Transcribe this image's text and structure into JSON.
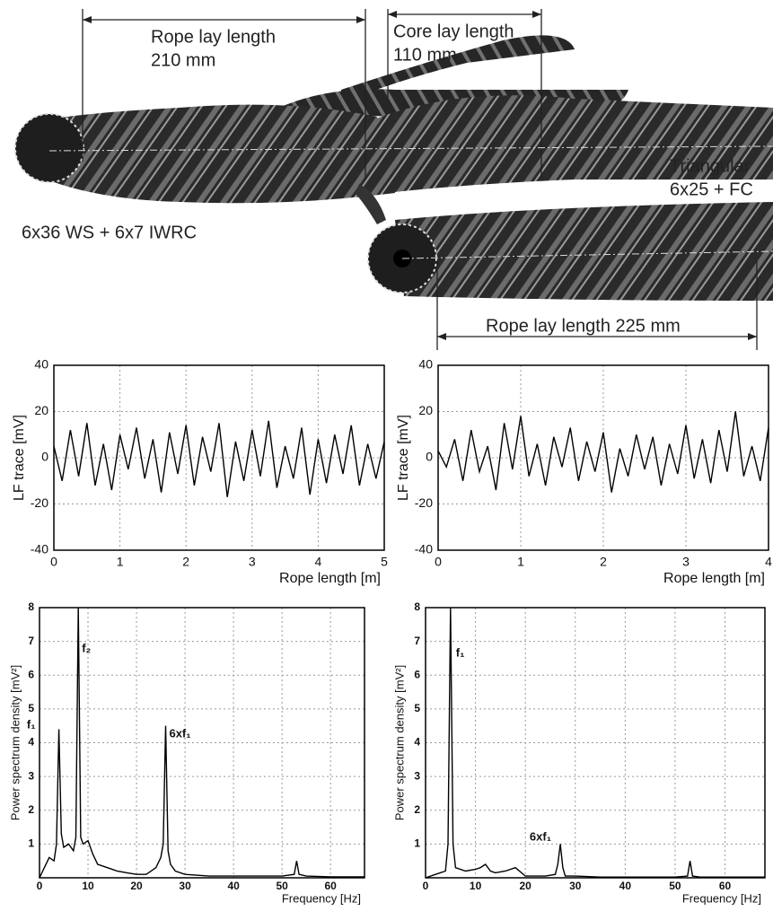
{
  "figure": {
    "labels": [
      "Rope lay length",
      "210 mm",
      "Core lay length",
      "110 mm",
      "Triangular",
      "6x25 + FC",
      "6x36 WS + 6x7 IWRC",
      "Rope lay length 225 mm"
    ]
  },
  "chart_data": [
    {
      "type": "line",
      "ylabel": "LF trace [mV]",
      "xlabel": "Rope length [m]",
      "color": "#000000",
      "grid": true,
      "xlim": [
        0,
        5
      ],
      "xticks": [
        0,
        1,
        2,
        3,
        4,
        5
      ],
      "ylim": [
        -40,
        40
      ],
      "yticks": [
        -40,
        -20,
        0,
        20,
        40
      ],
      "x": [
        0,
        0.125,
        0.25,
        0.375,
        0.5,
        0.625,
        0.75,
        0.875,
        1,
        1.125,
        1.25,
        1.375,
        1.5,
        1.625,
        1.75,
        1.875,
        2,
        2.125,
        2.25,
        2.375,
        2.5,
        2.625,
        2.75,
        2.875,
        3,
        3.125,
        3.25,
        3.375,
        3.5,
        3.625,
        3.75,
        3.875,
        4,
        4.125,
        4.25,
        4.375,
        4.5,
        4.625,
        4.75,
        4.875,
        5
      ],
      "values": [
        5,
        -10,
        12,
        -8,
        15,
        -12,
        6,
        -14,
        10,
        -5,
        13,
        -9,
        8,
        -15,
        11,
        -7,
        14,
        -12,
        9,
        -6,
        15,
        -17,
        7,
        -10,
        12,
        -8,
        16,
        -13,
        5,
        -9,
        13,
        -16,
        8,
        -11,
        10,
        -7,
        14,
        -12,
        6,
        -9,
        7
      ]
    },
    {
      "type": "line",
      "ylabel": "LF trace [mV]",
      "xlabel": "Rope length [m]",
      "color": "#000000",
      "grid": true,
      "xlim": [
        0,
        4
      ],
      "xticks": [
        0,
        1,
        2,
        3,
        4
      ],
      "ylim": [
        -40,
        40
      ],
      "yticks": [
        -40,
        -20,
        0,
        20,
        40
      ],
      "x": [
        0,
        0.1,
        0.2,
        0.3,
        0.4,
        0.5,
        0.6,
        0.7,
        0.8,
        0.9,
        1,
        1.1,
        1.2,
        1.3,
        1.4,
        1.5,
        1.6,
        1.7,
        1.8,
        1.9,
        2,
        2.1,
        2.2,
        2.3,
        2.4,
        2.5,
        2.6,
        2.7,
        2.8,
        2.9,
        3,
        3.1,
        3.2,
        3.3,
        3.4,
        3.5,
        3.6,
        3.7,
        3.8,
        3.9,
        4
      ],
      "values": [
        3,
        -4,
        8,
        -10,
        12,
        -6,
        5,
        -14,
        15,
        -5,
        18,
        -8,
        6,
        -12,
        9,
        -4,
        13,
        -10,
        7,
        -6,
        11,
        -15,
        4,
        -8,
        10,
        -5,
        9,
        -12,
        6,
        -7,
        14,
        -9,
        8,
        -11,
        12,
        -6,
        20,
        -8,
        5,
        -10,
        13
      ]
    },
    {
      "type": "line",
      "ylabel": "Power spectrum density  [mV²]",
      "xlabel": "Frequency  [Hz]",
      "color": "#000000",
      "grid": true,
      "xlim": [
        0,
        67
      ],
      "xticks": [
        0,
        10,
        20,
        30,
        40,
        50,
        60
      ],
      "ylim": [
        0,
        8
      ],
      "yticks": [
        1,
        2,
        3,
        4,
        5,
        6,
        7,
        8
      ],
      "annotations": [
        "f₁",
        "f₂",
        "6xf₁"
      ],
      "x": [
        0,
        1,
        2,
        3,
        3.5,
        4,
        4.5,
        5,
        6,
        7,
        7.5,
        8,
        8.5,
        9,
        10,
        11,
        12,
        14,
        16,
        18,
        20,
        22,
        24,
        25,
        25.5,
        26,
        26.5,
        27,
        28,
        30,
        35,
        40,
        45,
        50,
        52.5,
        53,
        53.5,
        55,
        60,
        65,
        67
      ],
      "values": [
        0,
        0.3,
        0.6,
        0.5,
        1,
        4.4,
        1.3,
        0.9,
        1,
        0.8,
        1.2,
        8,
        1.2,
        1,
        1.1,
        0.7,
        0.4,
        0.3,
        0.2,
        0.15,
        0.1,
        0.1,
        0.3,
        0.6,
        1,
        4.5,
        0.8,
        0.4,
        0.2,
        0.1,
        0.05,
        0.05,
        0.05,
        0.05,
        0.1,
        0.5,
        0.1,
        0.05,
        0.03,
        0.03,
        0.03
      ]
    },
    {
      "type": "line",
      "ylabel": "Power spectrum density  [mV²]",
      "xlabel": "Frequency  [Hz]",
      "color": "#000000",
      "grid": true,
      "xlim": [
        0,
        68
      ],
      "xticks": [
        0,
        10,
        20,
        30,
        40,
        50,
        60
      ],
      "ylim": [
        0,
        8
      ],
      "yticks": [
        1,
        2,
        3,
        4,
        5,
        6,
        7,
        8
      ],
      "annotations": [
        "f₁",
        "6xf₁"
      ],
      "x": [
        0,
        2,
        4,
        4.5,
        5,
        5.5,
        6,
        8,
        10,
        11,
        12,
        13,
        14,
        16,
        18,
        20,
        22,
        24,
        26,
        26.5,
        27,
        27.5,
        28,
        30,
        35,
        40,
        45,
        50,
        52.5,
        53,
        53.5,
        55,
        60,
        65,
        68
      ],
      "values": [
        0,
        0.1,
        0.2,
        1,
        8,
        1,
        0.3,
        0.2,
        0.25,
        0.3,
        0.4,
        0.2,
        0.15,
        0.2,
        0.3,
        0.05,
        0.05,
        0.05,
        0.1,
        0.4,
        1,
        0.3,
        0.05,
        0.05,
        0.02,
        0.02,
        0.02,
        0.02,
        0.05,
        0.5,
        0.05,
        0.02,
        0.02,
        0.02,
        0.02
      ]
    }
  ]
}
